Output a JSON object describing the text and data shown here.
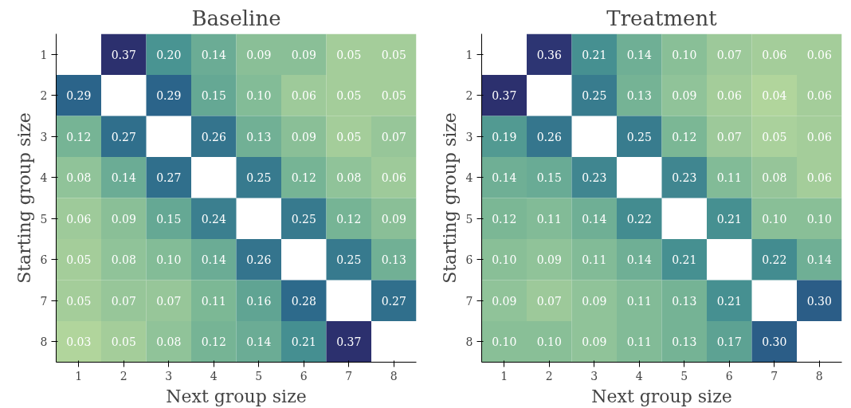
{
  "chart_data": [
    {
      "type": "heatmap",
      "title": "Baseline",
      "xlabel": "Next group size",
      "ylabel": "Starting group size",
      "data_labels": true,
      "grid": false,
      "categories": [
        "1",
        "2",
        "3",
        "4",
        "5",
        "6",
        "7",
        "8"
      ],
      "y_categories": [
        "1",
        "2",
        "3",
        "4",
        "5",
        "6",
        "7",
        "8"
      ],
      "cells": [
        [
          null,
          0.37,
          0.2,
          0.14,
          0.09,
          0.09,
          0.05,
          0.05
        ],
        [
          0.29,
          null,
          0.29,
          0.15,
          0.1,
          0.06,
          0.05,
          0.05
        ],
        [
          0.12,
          0.27,
          null,
          0.26,
          0.13,
          0.09,
          0.05,
          0.07
        ],
        [
          0.08,
          0.14,
          0.27,
          null,
          0.25,
          0.12,
          0.08,
          0.06
        ],
        [
          0.06,
          0.09,
          0.15,
          0.24,
          null,
          0.25,
          0.12,
          0.09
        ],
        [
          0.05,
          0.08,
          0.1,
          0.14,
          0.26,
          null,
          0.25,
          0.13
        ],
        [
          0.05,
          0.07,
          0.07,
          0.11,
          0.16,
          0.28,
          null,
          0.27
        ],
        [
          0.03,
          0.05,
          0.08,
          0.12,
          0.14,
          0.21,
          0.37,
          null
        ]
      ],
      "cell_labels": [
        [
          null,
          "0.37",
          "0.20",
          "0.14",
          "0.09",
          "0.09",
          "0.05",
          "0.05"
        ],
        [
          "0.29",
          null,
          "0.29",
          "0.15",
          "0.10",
          "0.06",
          "0.05",
          "0.05"
        ],
        [
          "0.12",
          "0.27",
          null,
          "0.26",
          "0.13",
          "0.09",
          "0.05",
          "0.07"
        ],
        [
          "0.08",
          "0.14",
          "0.27",
          null,
          "0.25",
          "0.12",
          "0.08",
          "0.06"
        ],
        [
          "0.06",
          "0.09",
          "0.15",
          "0.24",
          null,
          "0.25",
          "0.12",
          "0.09"
        ],
        [
          "0.05",
          "0.08",
          "0.10",
          "0.14",
          "0.26",
          null,
          "0.25",
          "0.13"
        ],
        [
          "0.05",
          "0.07",
          "0.07",
          "0.11",
          "0.16",
          "0.28",
          null,
          "0.27"
        ],
        [
          "0.03",
          "0.05",
          "0.08",
          "0.12",
          "0.14",
          "0.21",
          "0.37",
          null
        ]
      ]
    },
    {
      "type": "heatmap",
      "title": "Treatment",
      "xlabel": "Next group size",
      "ylabel": "Starting group size",
      "data_labels": true,
      "grid": false,
      "categories": [
        "1",
        "2",
        "3",
        "4",
        "5",
        "6",
        "7",
        "8"
      ],
      "y_categories": [
        "1",
        "2",
        "3",
        "4",
        "5",
        "6",
        "7",
        "8"
      ],
      "cells": [
        [
          null,
          0.36,
          0.21,
          0.14,
          0.1,
          0.07,
          0.06,
          0.06
        ],
        [
          0.37,
          null,
          0.25,
          0.13,
          0.09,
          0.06,
          0.04,
          0.06
        ],
        [
          0.19,
          0.26,
          null,
          0.25,
          0.12,
          0.07,
          0.05,
          0.06
        ],
        [
          0.14,
          0.15,
          0.23,
          null,
          0.23,
          0.11,
          0.08,
          0.06
        ],
        [
          0.12,
          0.11,
          0.14,
          0.22,
          null,
          0.21,
          0.1,
          0.1
        ],
        [
          0.1,
          0.09,
          0.11,
          0.14,
          0.21,
          null,
          0.22,
          0.14
        ],
        [
          0.09,
          0.07,
          0.09,
          0.11,
          0.13,
          0.21,
          null,
          0.3
        ],
        [
          0.1,
          0.1,
          0.09,
          0.11,
          0.13,
          0.17,
          0.3,
          null
        ]
      ],
      "cell_labels": [
        [
          null,
          "0.36",
          "0.21",
          "0.14",
          "0.10",
          "0.07",
          "0.06",
          "0.06"
        ],
        [
          "0.37",
          null,
          "0.25",
          "0.13",
          "0.09",
          "0.06",
          "0.04",
          "0.06"
        ],
        [
          "0.19",
          "0.26",
          null,
          "0.25",
          "0.12",
          "0.07",
          "0.05",
          "0.06"
        ],
        [
          "0.14",
          "0.15",
          "0.23",
          null,
          "0.23",
          "0.11",
          "0.08",
          "0.06"
        ],
        [
          "0.12",
          "0.11",
          "0.14",
          "0.22",
          null,
          "0.21",
          "0.10",
          "0.10"
        ],
        [
          "0.10",
          "0.09",
          "0.11",
          "0.14",
          "0.21",
          null,
          "0.22",
          "0.14"
        ],
        [
          "0.09",
          "0.07",
          "0.09",
          "0.11",
          "0.13",
          "0.21",
          null,
          "0.30"
        ],
        [
          "0.10",
          "0.10",
          "0.09",
          "0.11",
          "0.13",
          "0.17",
          "0.30",
          null
        ]
      ]
    }
  ]
}
